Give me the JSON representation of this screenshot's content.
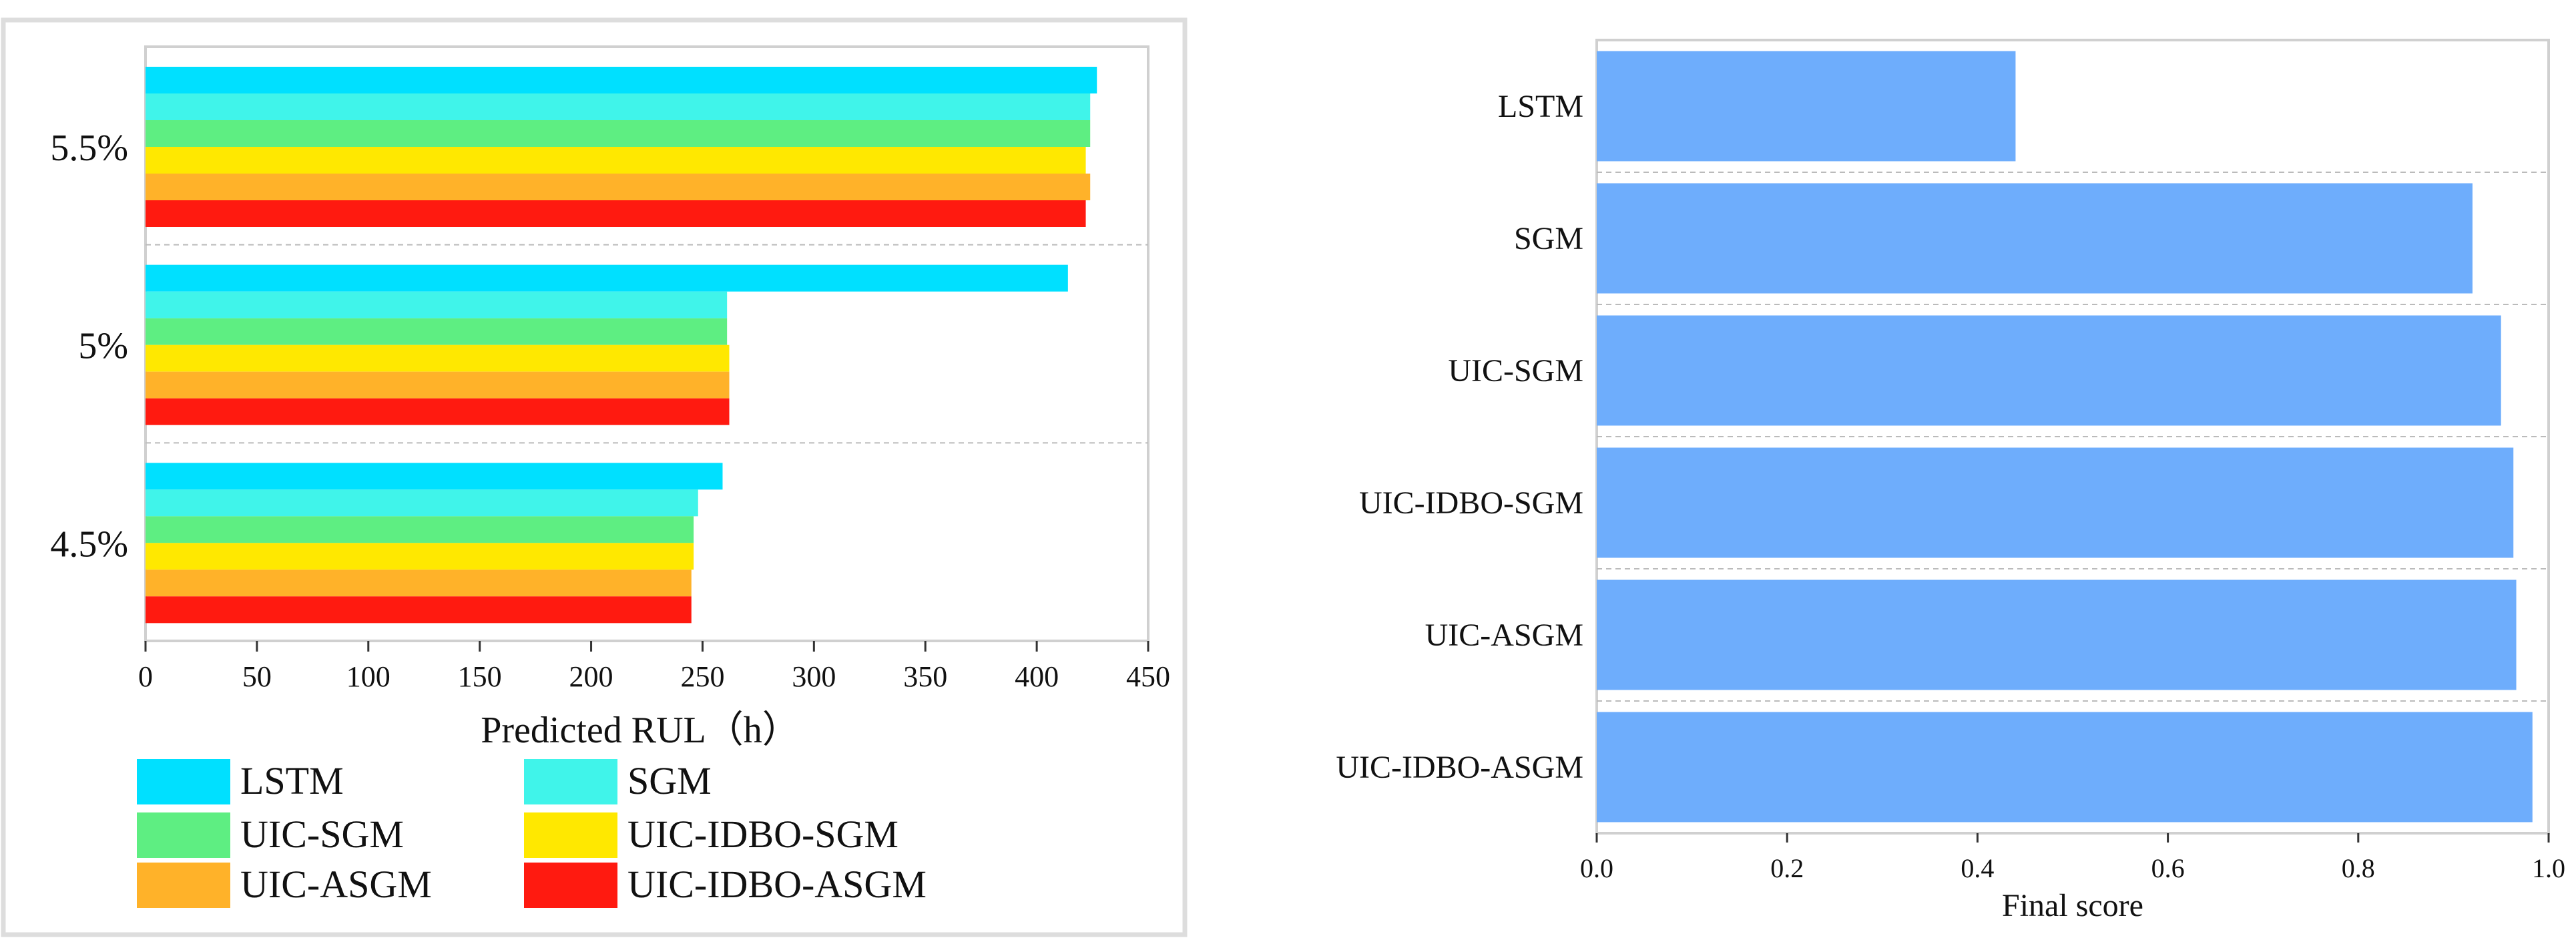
{
  "colors": {
    "LSTM": "#00E0FF",
    "SGM": "#40F4EA",
    "UIC-SGM": "#5EEE82",
    "UIC-IDBO-SGM": "#FFE800",
    "UIC-ASGM": "#FFB229",
    "UIC-IDBO-ASGM": "#FF1A10",
    "score_bar": "#6EADFC"
  },
  "chart_data": [
    {
      "type": "bar",
      "orientation": "horizontal",
      "title": "",
      "xlabel": "Predicted RUL（h）",
      "ylabel": "",
      "categories": [
        "5.5%",
        "5%",
        "4.5%"
      ],
      "xlim": [
        0,
        450
      ],
      "xticks": [
        "0",
        "50",
        "100",
        "150",
        "200",
        "250",
        "300",
        "350",
        "400",
        "450"
      ],
      "grid": "horizontal dashed separators",
      "legend_position": "bottom",
      "series": [
        {
          "name": "LSTM",
          "values": [
            427,
            414,
            259
          ]
        },
        {
          "name": "SGM",
          "values": [
            424,
            261,
            248
          ]
        },
        {
          "name": "UIC-SGM",
          "values": [
            424,
            261,
            246
          ]
        },
        {
          "name": "UIC-IDBO-SGM",
          "values": [
            422,
            262,
            246
          ]
        },
        {
          "name": "UIC-ASGM",
          "values": [
            424,
            262,
            245
          ]
        },
        {
          "name": "UIC-IDBO-ASGM",
          "values": [
            422,
            262,
            245
          ]
        }
      ]
    },
    {
      "type": "bar",
      "orientation": "horizontal",
      "title": "",
      "xlabel": "Final score",
      "ylabel": "",
      "categories": [
        "LSTM",
        "SGM",
        "UIC-SGM",
        "UIC-IDBO-SGM",
        "UIC-ASGM",
        "UIC-IDBO-ASGM"
      ],
      "values": [
        0.44,
        0.92,
        0.95,
        0.963,
        0.966,
        0.983
      ],
      "xlim": [
        0,
        1.0
      ],
      "xticks": [
        "0.0",
        "0.2",
        "0.4",
        "0.6",
        "0.8",
        "1.0"
      ],
      "grid": "horizontal dashed separators"
    }
  ]
}
